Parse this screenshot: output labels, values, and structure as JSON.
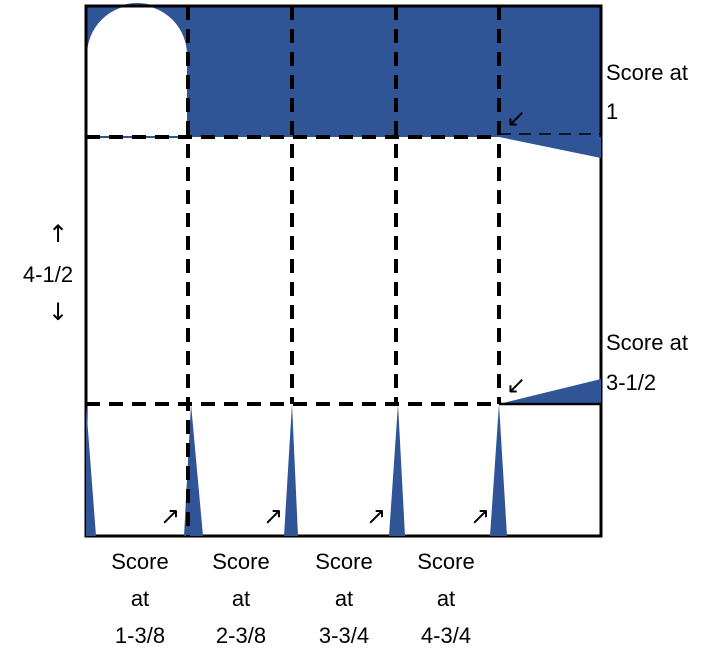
{
  "colors": {
    "fill_blue": "#2f5597",
    "outline": "#000000",
    "background": "#ffffff"
  },
  "side_dimension": {
    "arrow_up": "↑",
    "value": "4-1/2",
    "arrow_down": "↓"
  },
  "right_scores": [
    {
      "line1": "Score at",
      "line2": "1",
      "arrow": "↙"
    },
    {
      "line1": "Score at",
      "line2": "3-1/2",
      "arrow": "↙"
    }
  ],
  "bottom_scores": [
    {
      "line1": "Score",
      "line2": "at",
      "line3": "1-3/8",
      "arrow": "↗"
    },
    {
      "line1": "Score",
      "line2": "at",
      "line3": "2-3/8",
      "arrow": "↗"
    },
    {
      "line1": "Score",
      "line2": "at",
      "line3": "3-3/4",
      "arrow": "↗"
    },
    {
      "line1": "Score",
      "line2": "at",
      "line3": "4-3/4",
      "arrow": "↗"
    }
  ],
  "icons": {
    "arch_cutout": "arch-cutout-icon",
    "score_wedge": "score-wedge-icon"
  }
}
